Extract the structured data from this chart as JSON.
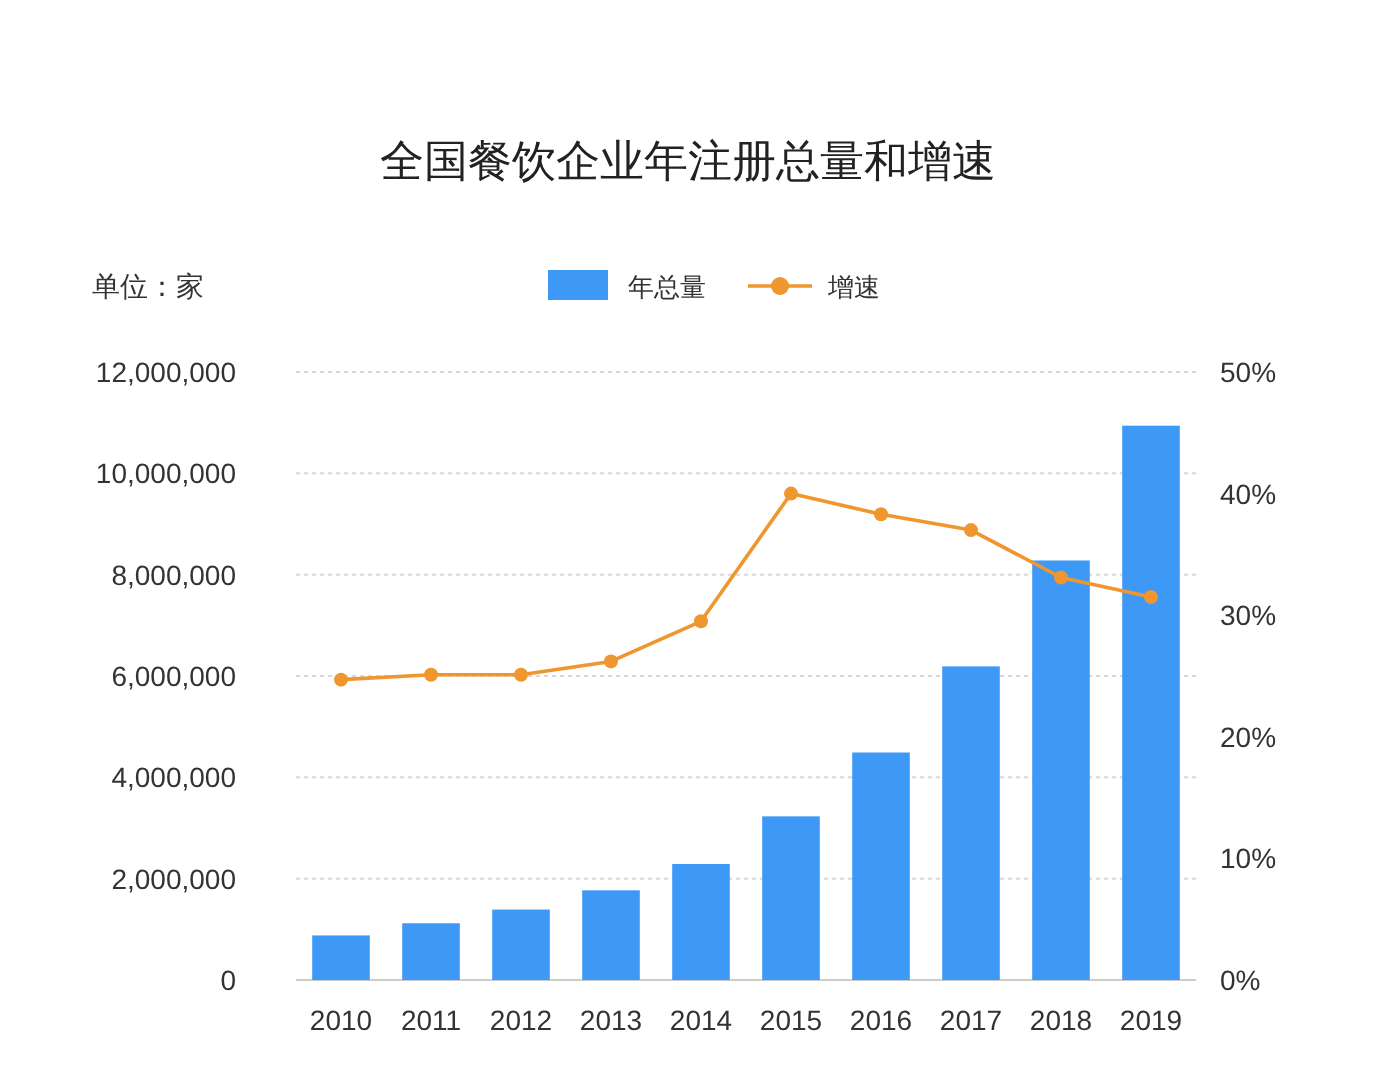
{
  "chart_data": {
    "type": "bar",
    "title": "全国餐饮企业年注册总量和增速",
    "annotations": [
      "单位：家"
    ],
    "categories": [
      "2010",
      "2011",
      "2012",
      "2013",
      "2014",
      "2015",
      "2016",
      "2017",
      "2018",
      "2019"
    ],
    "series": [
      {
        "name": "年总量",
        "color": "#3d99f5",
        "values": [
          880000,
          1120000,
          1390000,
          1770000,
          2290000,
          3230000,
          4490000,
          6190000,
          8280000,
          10940000
        ]
      },
      {
        "name": "增速",
        "type": "line",
        "axis": "y2",
        "color": "#f0962e",
        "values": [
          24.7,
          25.1,
          25.1,
          26.2,
          29.5,
          40.0,
          38.3,
          37.0,
          33.1,
          31.5
        ]
      }
    ],
    "ylim": [
      0,
      12000000
    ],
    "yticks": [
      0,
      {
        "value": 2000000,
        "label": "2,000,000"
      },
      {
        "value": 4000000,
        "label": "4,000,000"
      },
      {
        "value": 6000000,
        "label": "6,000,000"
      },
      {
        "value": 8000000,
        "label": "8,000,000"
      },
      {
        "value": 10000000,
        "label": "10,000,000"
      },
      {
        "value": 12000000,
        "label": "12,000,000"
      }
    ],
    "y2lim": [
      0,
      50
    ],
    "y2ticks": [
      {
        "value": 0,
        "label": "0%"
      },
      {
        "value": 10,
        "label": "10%"
      },
      {
        "value": 20,
        "label": "20%"
      },
      {
        "value": 30,
        "label": "30%"
      },
      {
        "value": 40,
        "label": "40%"
      },
      {
        "value": 50,
        "label": "50%"
      }
    ],
    "grid": "y",
    "legend": "top",
    "marker": "circle",
    "line_style": "solid"
  }
}
